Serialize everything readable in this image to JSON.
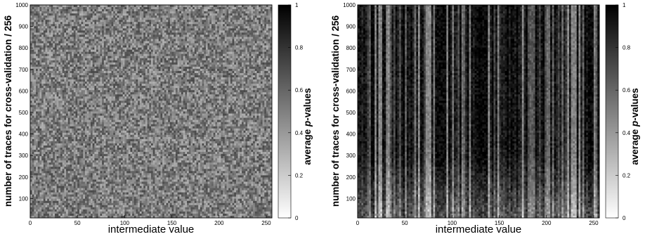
{
  "chart_data": [
    {
      "type": "heatmap",
      "title": "",
      "xlabel": "intermediate value",
      "ylabel": "number of traces for cross-validation / 256",
      "colorbar_label": "average p-values",
      "colorbar_label_plain": "average ",
      "colorbar_label_italic": "p",
      "colorbar_label_suffix": "-values",
      "xlim": [
        0,
        256
      ],
      "ylim": [
        10,
        1000
      ],
      "xticks": [
        "0",
        "50",
        "100",
        "150",
        "200",
        "250"
      ],
      "yticks": [
        "100",
        "200",
        "300",
        "400",
        "500",
        "600",
        "700",
        "800",
        "900",
        "1000"
      ],
      "colorbar_range": [
        0,
        1
      ],
      "colorbar_ticks": [
        "0",
        "0.2",
        "0.4",
        "0.6",
        "0.8",
        "1"
      ],
      "colormap": [
        "#ffffff",
        "#000000"
      ],
      "pattern": "uniform noise",
      "mean_value": 0.5
    },
    {
      "type": "heatmap",
      "title": "",
      "xlabel": "intermediate value",
      "ylabel": "number of traces for cross-validation / 256",
      "colorbar_label": "average p-values",
      "colorbar_label_plain": "average ",
      "colorbar_label_italic": "p",
      "colorbar_label_suffix": "-values",
      "xlim": [
        0,
        256
      ],
      "ylim": [
        10,
        1000
      ],
      "xticks": [
        "0",
        "50",
        "100",
        "150",
        "200",
        "250"
      ],
      "yticks": [
        "100",
        "200",
        "300",
        "400",
        "500",
        "600",
        "700",
        "800",
        "900",
        "1000"
      ],
      "colorbar_range": [
        0,
        1
      ],
      "colorbar_ticks": [
        "0",
        "0.2",
        "0.4",
        "0.6",
        "0.8",
        "1"
      ],
      "colormap": [
        "#ffffff",
        "#000000"
      ],
      "pattern": "vertical streaks, lighter near low trace counts",
      "mean_value": 0.82
    }
  ]
}
